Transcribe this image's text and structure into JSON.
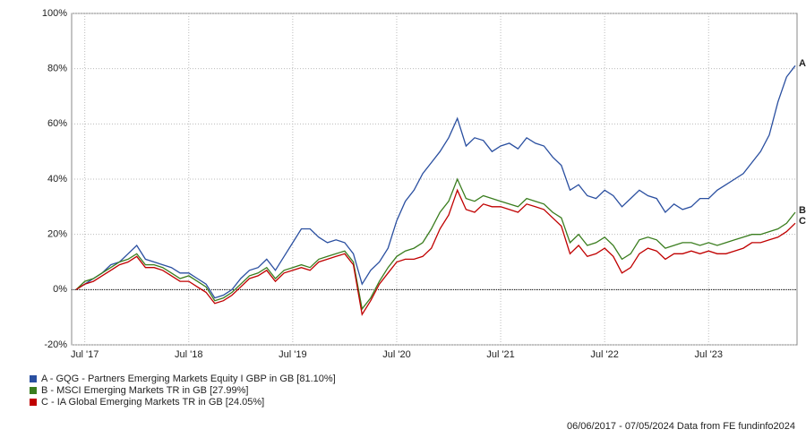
{
  "chart_data": {
    "type": "line",
    "x": [
      "2017-06",
      "2017-07",
      "2017-08",
      "2017-09",
      "2017-10",
      "2017-11",
      "2017-12",
      "2018-01",
      "2018-02",
      "2018-03",
      "2018-04",
      "2018-05",
      "2018-06",
      "2018-07",
      "2018-08",
      "2018-09",
      "2018-10",
      "2018-11",
      "2018-12",
      "2019-01",
      "2019-02",
      "2019-03",
      "2019-04",
      "2019-05",
      "2019-06",
      "2019-07",
      "2019-08",
      "2019-09",
      "2019-10",
      "2019-11",
      "2019-12",
      "2020-01",
      "2020-02",
      "2020-03",
      "2020-04",
      "2020-05",
      "2020-06",
      "2020-07",
      "2020-08",
      "2020-09",
      "2020-10",
      "2020-11",
      "2020-12",
      "2021-01",
      "2021-02",
      "2021-03",
      "2021-04",
      "2021-05",
      "2021-06",
      "2021-07",
      "2021-08",
      "2021-09",
      "2021-10",
      "2021-11",
      "2021-12",
      "2022-01",
      "2022-02",
      "2022-03",
      "2022-04",
      "2022-05",
      "2022-06",
      "2022-07",
      "2022-08",
      "2022-09",
      "2022-10",
      "2022-11",
      "2022-12",
      "2023-01",
      "2023-02",
      "2023-03",
      "2023-04",
      "2023-05",
      "2023-06",
      "2023-07",
      "2023-08",
      "2023-09",
      "2023-10",
      "2023-11",
      "2023-12",
      "2024-01",
      "2024-02",
      "2024-03",
      "2024-04",
      "2024-05"
    ],
    "xlim": [
      "2017-06",
      "2024-05"
    ],
    "xticks": [
      {
        "value": "2017-07",
        "label": "Jul '17"
      },
      {
        "value": "2018-07",
        "label": "Jul '18"
      },
      {
        "value": "2019-07",
        "label": "Jul '19"
      },
      {
        "value": "2020-07",
        "label": "Jul '20"
      },
      {
        "value": "2021-07",
        "label": "Jul '21"
      },
      {
        "value": "2022-07",
        "label": "Jul '22"
      },
      {
        "value": "2023-07",
        "label": "Jul '23"
      }
    ],
    "ylim": [
      -20,
      100
    ],
    "yticks": [
      {
        "value": -20,
        "label": "-20%"
      },
      {
        "value": 0,
        "label": "0%"
      },
      {
        "value": 20,
        "label": "20%"
      },
      {
        "value": 40,
        "label": "40%"
      },
      {
        "value": 60,
        "label": "60%"
      },
      {
        "value": 80,
        "label": "80%"
      },
      {
        "value": 100,
        "label": "100%"
      }
    ],
    "grid": true,
    "reference_line": 0,
    "series": [
      {
        "name": "A - GQG - Partners Emerging Markets Equity I GBP in GB [81.10%]",
        "label": "A",
        "color": "#2a4fa0",
        "values": [
          0,
          2,
          4,
          6,
          9,
          10,
          13,
          16,
          11,
          10,
          9,
          8,
          6,
          6,
          4,
          2,
          -3,
          -2,
          0,
          4,
          7,
          8,
          11,
          7,
          12,
          17,
          22,
          22,
          19,
          17,
          18,
          17,
          13,
          2,
          7,
          10,
          15,
          25,
          32,
          36,
          42,
          46,
          50,
          55,
          62,
          52,
          55,
          54,
          50,
          52,
          53,
          51,
          55,
          53,
          52,
          48,
          45,
          36,
          38,
          34,
          33,
          36,
          34,
          30,
          33,
          36,
          34,
          33,
          28,
          31,
          29,
          30,
          33,
          33,
          36,
          38,
          40,
          42,
          46,
          50,
          56,
          68,
          77,
          81.1
        ]
      },
      {
        "name": "B - MSCI Emerging Markets TR in GB [27.99%]",
        "label": "B",
        "color": "#3a7d1e",
        "values": [
          0,
          3,
          4,
          6,
          8,
          10,
          11,
          13,
          9,
          9,
          8,
          6,
          4,
          5,
          3,
          1,
          -4,
          -3,
          -1,
          2,
          5,
          6,
          8,
          4,
          7,
          8,
          9,
          8,
          11,
          12,
          13,
          14,
          10,
          -7,
          -3,
          3,
          8,
          12,
          14,
          15,
          17,
          22,
          28,
          32,
          40,
          33,
          32,
          34,
          33,
          32,
          31,
          30,
          33,
          32,
          31,
          28,
          26,
          17,
          20,
          16,
          17,
          19,
          16,
          11,
          13,
          18,
          19,
          18,
          15,
          16,
          17,
          17,
          16,
          17,
          16,
          17,
          18,
          19,
          20,
          20,
          21,
          22,
          24,
          27.99
        ]
      },
      {
        "name": "C - IA Global Emerging Markets TR in GB [24.05%]",
        "label": "C",
        "color": "#c00000",
        "values": [
          0,
          2,
          3,
          5,
          7,
          9,
          10,
          12,
          8,
          8,
          7,
          5,
          3,
          3,
          1,
          -1,
          -5,
          -4,
          -2,
          1,
          4,
          5,
          7,
          3,
          6,
          7,
          8,
          7,
          10,
          11,
          12,
          13,
          9,
          -9,
          -4,
          2,
          6,
          10,
          11,
          11,
          12,
          15,
          22,
          27,
          36,
          29,
          28,
          31,
          30,
          30,
          29,
          28,
          31,
          30,
          29,
          26,
          23,
          13,
          16,
          12,
          13,
          15,
          12,
          6,
          8,
          13,
          15,
          14,
          11,
          13,
          13,
          14,
          13,
          14,
          13,
          13,
          14,
          15,
          17,
          17,
          18,
          19,
          21,
          24.05
        ]
      }
    ],
    "footer": "06/06/2017 - 07/05/2024 Data from FE fundinfo2024"
  }
}
